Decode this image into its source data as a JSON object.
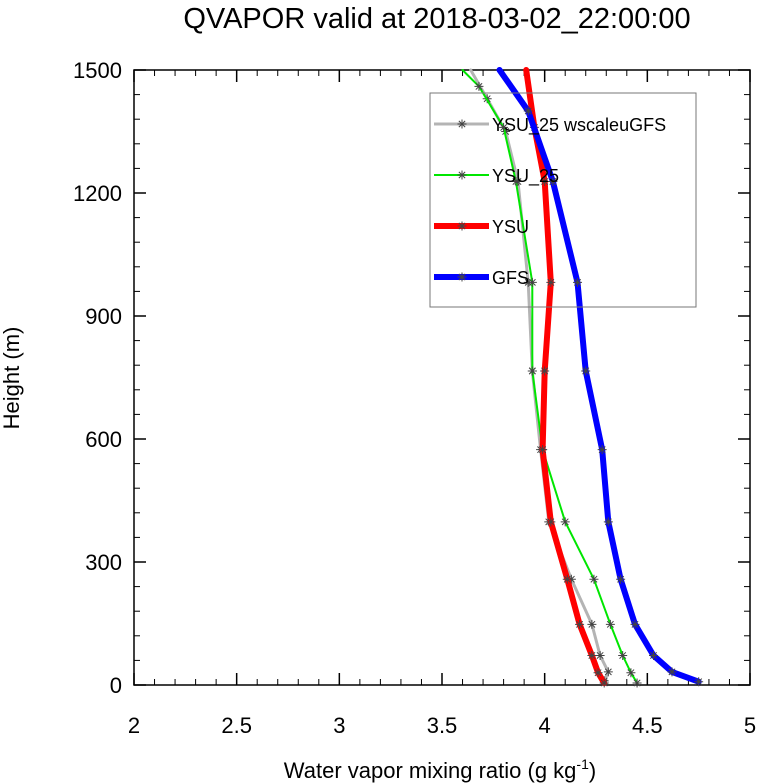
{
  "chart_data": {
    "type": "line",
    "title": "QVAPOR valid at 2018-03-02_22:00:00",
    "xlabel": "Water vapor mixing ratio (g kg",
    "xlabel_sup": "-1",
    "xlabel_end": ")",
    "ylabel": "Height (m)",
    "xlim": [
      2,
      5
    ],
    "ylim": [
      0,
      1500
    ],
    "xticks": [
      2,
      2.5,
      3,
      3.5,
      4,
      4.5,
      5
    ],
    "xtick_labels": [
      "2",
      "2.5",
      "3",
      "3.5",
      "4",
      "4.5",
      "5"
    ],
    "yticks": [
      0,
      300,
      600,
      900,
      1200,
      1500
    ],
    "ytick_labels": [
      "0",
      "300",
      "600",
      "900",
      "1200",
      "1500"
    ],
    "legend_position": "top-right",
    "series": [
      {
        "name": "YSU_25 wscaleuGFS",
        "color": "#b4b4b4",
        "width": 3,
        "marker": "*",
        "points": [
          [
            4.29,
            10
          ],
          [
            4.31,
            32
          ],
          [
            4.27,
            72
          ],
          [
            4.23,
            148
          ],
          [
            4.13,
            258
          ],
          [
            4.02,
            398
          ],
          [
            3.98,
            574
          ],
          [
            3.94,
            766
          ],
          [
            3.92,
            982
          ],
          [
            3.87,
            1228
          ],
          [
            3.81,
            1350
          ],
          [
            3.72,
            1430
          ],
          [
            3.64,
            1500
          ]
        ]
      },
      {
        "name": "YSU_25",
        "color": "#00e600",
        "width": 2,
        "marker": "*",
        "points": [
          [
            4.45,
            5
          ],
          [
            4.42,
            30
          ],
          [
            4.38,
            72
          ],
          [
            4.32,
            148
          ],
          [
            4.24,
            258
          ],
          [
            4.1,
            398
          ],
          [
            3.99,
            574
          ],
          [
            3.94,
            766
          ],
          [
            3.94,
            982
          ],
          [
            3.86,
            1228
          ],
          [
            3.8,
            1360
          ],
          [
            3.68,
            1460
          ],
          [
            3.6,
            1500
          ]
        ]
      },
      {
        "name": "YSU",
        "color": "#ff0000",
        "width": 6,
        "marker": "*",
        "points": [
          [
            4.29,
            5
          ],
          [
            4.26,
            30
          ],
          [
            4.23,
            72
          ],
          [
            4.17,
            148
          ],
          [
            4.11,
            258
          ],
          [
            4.03,
            398
          ],
          [
            3.99,
            574
          ],
          [
            4.0,
            766
          ],
          [
            4.03,
            982
          ],
          [
            4.0,
            1228
          ],
          [
            3.95,
            1360
          ],
          [
            3.91,
            1500
          ]
        ]
      },
      {
        "name": "GFS",
        "color": "#0000ff",
        "width": 6,
        "marker": "*",
        "points": [
          [
            4.75,
            8
          ],
          [
            4.62,
            32
          ],
          [
            4.53,
            72
          ],
          [
            4.44,
            148
          ],
          [
            4.37,
            258
          ],
          [
            4.31,
            398
          ],
          [
            4.28,
            574
          ],
          [
            4.2,
            766
          ],
          [
            4.16,
            982
          ],
          [
            4.04,
            1228
          ],
          [
            3.92,
            1400
          ],
          [
            3.78,
            1500
          ]
        ]
      }
    ]
  }
}
